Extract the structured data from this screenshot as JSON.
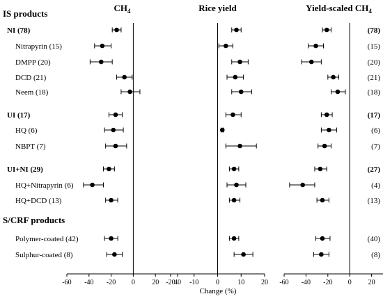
{
  "figure": {
    "x_axis_label": "Change (%)",
    "panels": [
      {
        "title": "CH",
        "title_sub": "4"
      },
      {
        "title": "Rice yield",
        "title_sub": ""
      },
      {
        "title": "Yield-scaled CH",
        "title_sub": "4"
      }
    ],
    "sections": [
      {
        "label": "IS products"
      },
      {
        "label": "S/CRF products"
      }
    ],
    "rows": [
      {
        "label": "NI (78)",
        "bold": true,
        "right_label": "(78)"
      },
      {
        "label": "Nitrapyrin (15)",
        "bold": false,
        "right_label": "(15)"
      },
      {
        "label": "DMPP (20)",
        "bold": false,
        "right_label": "(20)"
      },
      {
        "label": "DCD (21)",
        "bold": false,
        "right_label": "(21)"
      },
      {
        "label": "Neem (18)",
        "bold": false,
        "right_label": "(18)"
      },
      {
        "label": "UI (17)",
        "bold": true,
        "right_label": "(17)"
      },
      {
        "label": "HQ (6)",
        "bold": false,
        "right_label": "(6)"
      },
      {
        "label": "NBPT (7)",
        "bold": false,
        "right_label": "(7)"
      },
      {
        "label": "UI+NI (29)",
        "bold": true,
        "right_label": "(27)"
      },
      {
        "label": "HQ+Nitrapyrin (6)",
        "bold": false,
        "right_label": "(4)"
      },
      {
        "label": "HQ+DCD (13)",
        "bold": false,
        "right_label": "(13)"
      },
      {
        "label": "Polymer-coated (42)",
        "bold": false,
        "right_label": "(40)"
      },
      {
        "label": "Sulphur-coated (8)",
        "bold": false,
        "right_label": "(8)"
      }
    ]
  },
  "chart_data": [
    {
      "type": "scatter",
      "title": "CH4",
      "xlabel": "Change (%)",
      "xlim": [
        -60,
        40
      ],
      "xticks": [
        -60,
        -40,
        -20,
        0,
        20,
        40
      ],
      "points": [
        {
          "row": "NI (78)",
          "mean": -15,
          "low": -19,
          "high": -11
        },
        {
          "row": "Nitrapyrin (15)",
          "mean": -28,
          "low": -35,
          "high": -20
        },
        {
          "row": "DMPP (20)",
          "mean": -29,
          "low": -39,
          "high": -19
        },
        {
          "row": "DCD (21)",
          "mean": -8,
          "low": -15,
          "high": -1
        },
        {
          "row": "Neem (18)",
          "mean": -3,
          "low": -11,
          "high": 6
        },
        {
          "row": "UI (17)",
          "mean": -16,
          "low": -22,
          "high": -10
        },
        {
          "row": "HQ (6)",
          "mean": -18,
          "low": -26,
          "high": -9
        },
        {
          "row": "NBPT (7)",
          "mean": -16,
          "low": -25,
          "high": -6
        },
        {
          "row": "UI+NI (29)",
          "mean": -22,
          "low": -27,
          "high": -17
        },
        {
          "row": "HQ+Nitrapyrin (6)",
          "mean": -37,
          "low": -45,
          "high": -27
        },
        {
          "row": "HQ+DCD (13)",
          "mean": -20,
          "low": -25,
          "high": -14
        },
        {
          "row": "Polymer-coated (42)",
          "mean": -20,
          "low": -26,
          "high": -14
        },
        {
          "row": "Sulphur-coated (8)",
          "mean": -17,
          "low": -24,
          "high": -10
        }
      ]
    },
    {
      "type": "scatter",
      "title": "Rice yield",
      "xlabel": "Change (%)",
      "xlim": [
        -20,
        20
      ],
      "xticks": [
        -20,
        -10,
        0,
        10,
        20
      ],
      "points": [
        {
          "row": "NI (78)",
          "mean": 8,
          "low": 6,
          "high": 10
        },
        {
          "row": "Nitrapyrin (15)",
          "mean": 3.5,
          "low": 0.5,
          "high": 6.5
        },
        {
          "row": "DMPP (20)",
          "mean": 9.5,
          "low": 6,
          "high": 13
        },
        {
          "row": "DCD (21)",
          "mean": 7.5,
          "low": 4,
          "high": 11
        },
        {
          "row": "Neem (18)",
          "mean": 10,
          "low": 6,
          "high": 14.5
        },
        {
          "row": "UI (17)",
          "mean": 6.5,
          "low": 3.5,
          "high": 10
        },
        {
          "row": "HQ (6)",
          "mean": 2,
          "low": 1.5,
          "high": 2.5
        },
        {
          "row": "NBPT (7)",
          "mean": 9.5,
          "low": 3.5,
          "high": 16.5
        },
        {
          "row": "UI+NI (29)",
          "mean": 7,
          "low": 5,
          "high": 9
        },
        {
          "row": "HQ+Nitrapyrin (6)",
          "mean": 8,
          "low": 4,
          "high": 12
        },
        {
          "row": "HQ+DCD (13)",
          "mean": 7,
          "low": 5,
          "high": 9.5
        },
        {
          "row": "Polymer-coated (42)",
          "mean": 7,
          "low": 5,
          "high": 9
        },
        {
          "row": "Sulphur-coated (8)",
          "mean": 11,
          "low": 7,
          "high": 15
        }
      ]
    },
    {
      "type": "scatter",
      "title": "Yield-scaled CH4",
      "xlabel": "Change (%)",
      "xlim": [
        -60,
        40
      ],
      "xticks": [
        -60,
        -40,
        -20,
        0,
        20,
        40
      ],
      "points": [
        {
          "row": "NI (78)",
          "mean": -21,
          "low": -25,
          "high": -17
        },
        {
          "row": "Nitrapyrin (15)",
          "mean": -31,
          "low": -38,
          "high": -24
        },
        {
          "row": "DMPP (20)",
          "mean": -35,
          "low": -44,
          "high": -26
        },
        {
          "row": "DCD (21)",
          "mean": -15,
          "low": -20,
          "high": -10
        },
        {
          "row": "Neem (18)",
          "mean": -11,
          "low": -17,
          "high": -4
        },
        {
          "row": "UI (17)",
          "mean": -21,
          "low": -26,
          "high": -16
        },
        {
          "row": "HQ (6)",
          "mean": -19,
          "low": -26,
          "high": -12
        },
        {
          "row": "NBPT (7)",
          "mean": -23,
          "low": -29,
          "high": -17
        },
        {
          "row": "UI+NI (29)",
          "mean": -27,
          "low": -32,
          "high": -21
        },
        {
          "row": "HQ+Nitrapyrin (6)",
          "mean": -43,
          "low": -55,
          "high": -32
        },
        {
          "row": "HQ+DCD (13)",
          "mean": -25,
          "low": -30,
          "high": -19
        },
        {
          "row": "Polymer-coated (42)",
          "mean": -25,
          "low": -31,
          "high": -18
        },
        {
          "row": "Sulphur-coated (8)",
          "mean": -26,
          "low": -33,
          "high": -19
        }
      ]
    }
  ]
}
